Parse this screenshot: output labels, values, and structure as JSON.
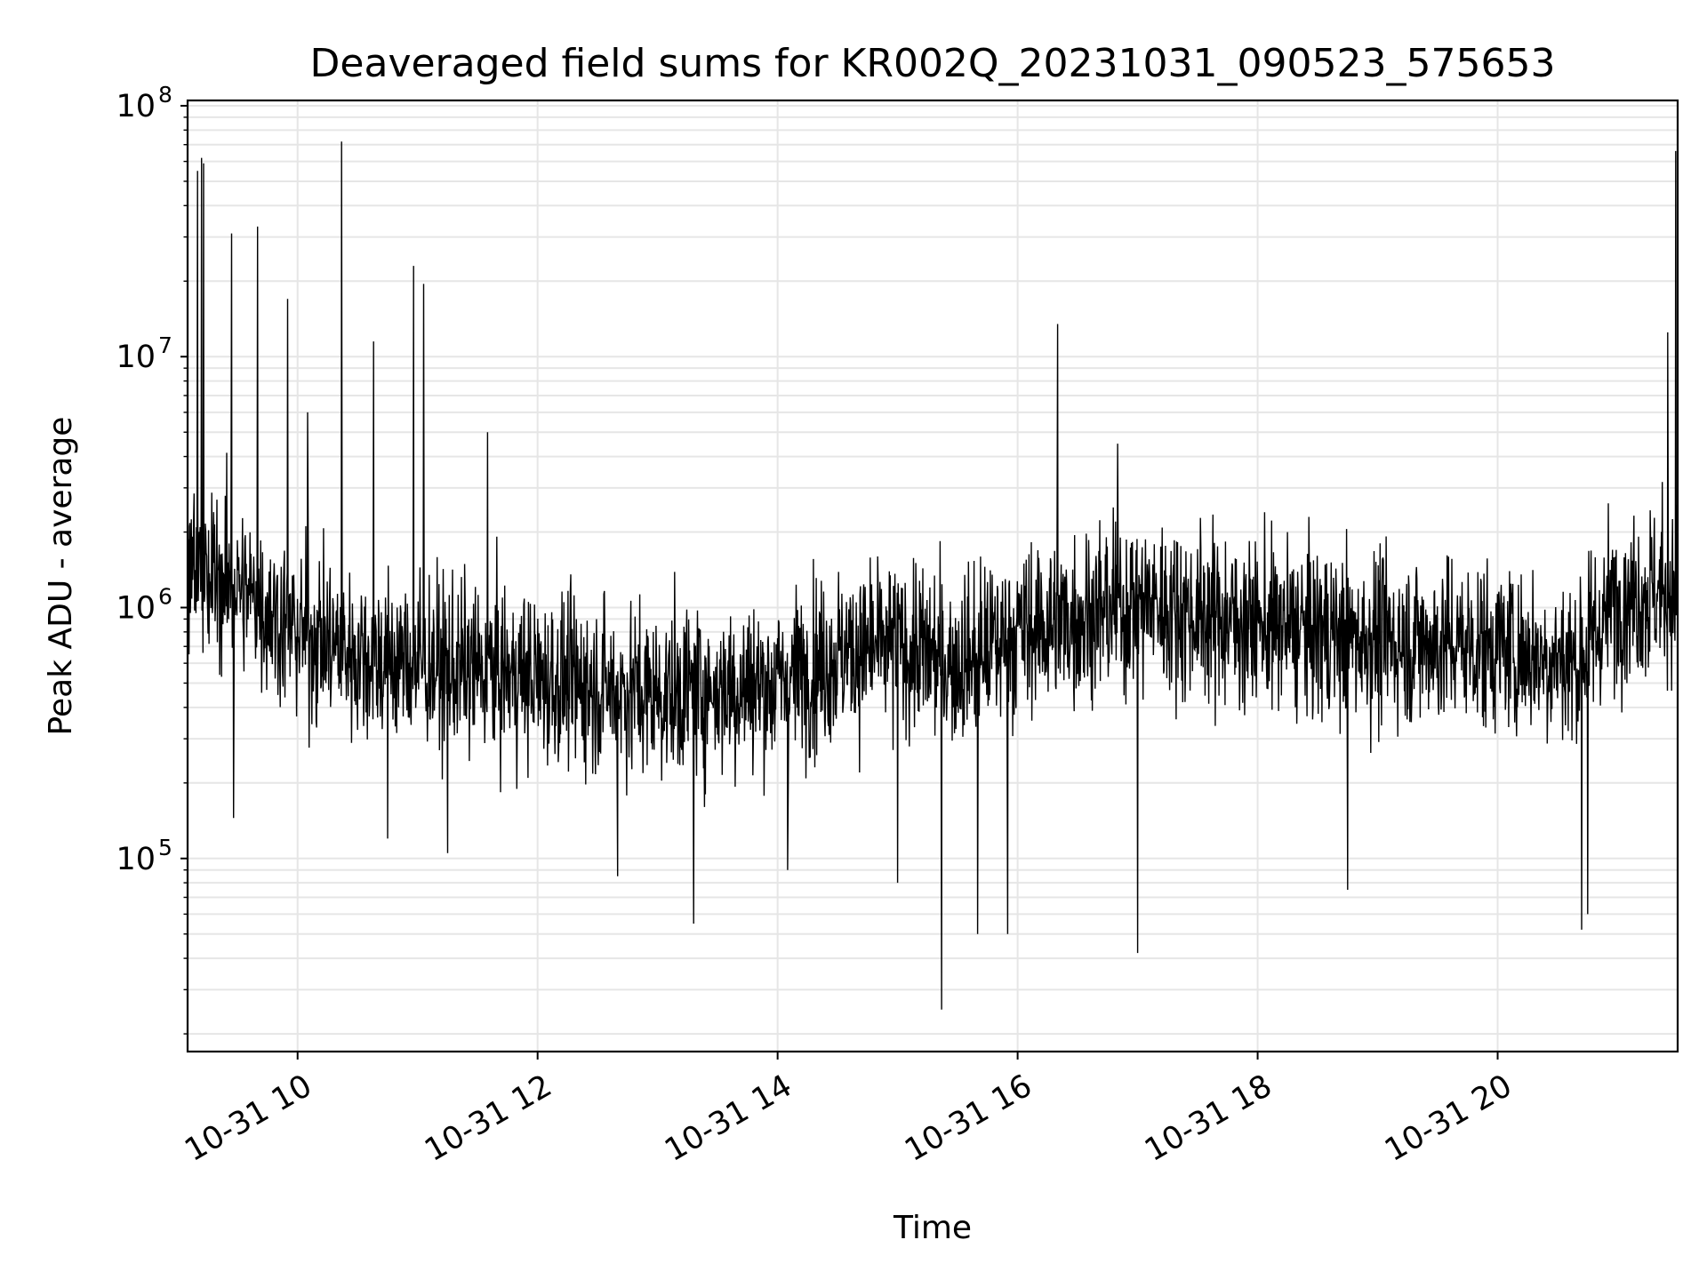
{
  "chart_data": {
    "type": "line",
    "title": "Deaveraged field sums for KR002Q_20231031_090523_575653",
    "xlabel": "Time",
    "ylabel": "Peak ADU - average",
    "yscale": "log",
    "xlim": [
      "2023-10-31T09:05",
      "2023-10-31T21:30"
    ],
    "ylim": [
      17000,
      105000000
    ],
    "grid": true,
    "line_color": "#000000",
    "grid_color": "#e6e6e6",
    "x_ticks": [
      {
        "x": "2023-10-31T10:00",
        "label": "10-31 10"
      },
      {
        "x": "2023-10-31T12:00",
        "label": "10-31 12"
      },
      {
        "x": "2023-10-31T14:00",
        "label": "10-31 14"
      },
      {
        "x": "2023-10-31T16:00",
        "label": "10-31 16"
      },
      {
        "x": "2023-10-31T18:00",
        "label": "10-31 18"
      },
      {
        "x": "2023-10-31T20:00",
        "label": "10-31 20"
      }
    ],
    "y_ticks": [
      {
        "value": 100000,
        "base": "10",
        "exp": "5"
      },
      {
        "value": 1000000,
        "base": "10",
        "exp": "6"
      },
      {
        "value": 10000000,
        "base": "10",
        "exp": "7"
      },
      {
        "value": 100000000,
        "base": "10",
        "exp": "8"
      }
    ],
    "series": [
      {
        "baseline": [
          [
            "2023-10-31T09:05",
            1500000
          ],
          [
            "2023-10-31T09:30",
            1200000
          ],
          [
            "2023-10-31T10:00",
            800000
          ],
          [
            "2023-10-31T10:30",
            650000
          ],
          [
            "2023-10-31T11:00",
            600000
          ],
          [
            "2023-10-31T12:00",
            520000
          ],
          [
            "2023-10-31T13:00",
            450000
          ],
          [
            "2023-10-31T14:00",
            500000
          ],
          [
            "2023-10-31T14:30",
            650000
          ],
          [
            "2023-10-31T15:00",
            700000
          ],
          [
            "2023-10-31T15:30",
            600000
          ],
          [
            "2023-10-31T16:00",
            800000
          ],
          [
            "2023-10-31T17:00",
            1050000
          ],
          [
            "2023-10-31T18:00",
            850000
          ],
          [
            "2023-10-31T19:00",
            750000
          ],
          [
            "2023-10-31T20:00",
            700000
          ],
          [
            "2023-10-31T20:40",
            600000
          ],
          [
            "2023-10-31T21:00",
            1100000
          ],
          [
            "2023-10-31T21:30",
            1200000
          ]
        ],
        "spikes": [
          [
            "2023-10-31T09:10",
            55000000
          ],
          [
            "2023-10-31T09:12",
            62000000
          ],
          [
            "2023-10-31T09:13",
            59000000
          ],
          [
            "2023-10-31T09:27",
            31000000
          ],
          [
            "2023-10-31T09:40",
            33000000
          ],
          [
            "2023-10-31T09:55",
            17000000
          ],
          [
            "2023-10-31T10:05",
            6000000
          ],
          [
            "2023-10-31T10:22",
            72000000
          ],
          [
            "2023-10-31T10:38",
            11500000
          ],
          [
            "2023-10-31T10:58",
            23000000
          ],
          [
            "2023-10-31T11:03",
            19500000
          ],
          [
            "2023-10-31T11:35",
            5000000
          ],
          [
            "2023-10-31T16:20",
            13500000
          ],
          [
            "2023-10-31T16:50",
            4500000
          ],
          [
            "2023-10-31T21:25",
            12500000
          ],
          [
            "2023-10-31T21:29",
            66000000
          ]
        ],
        "dips": [
          [
            "2023-10-31T09:28",
            145000
          ],
          [
            "2023-10-31T10:45",
            120000
          ],
          [
            "2023-10-31T11:15",
            105000
          ],
          [
            "2023-10-31T12:40",
            85000
          ],
          [
            "2023-10-31T13:18",
            55000
          ],
          [
            "2023-10-31T14:05",
            90000
          ],
          [
            "2023-10-31T15:00",
            80000
          ],
          [
            "2023-10-31T15:22",
            25000
          ],
          [
            "2023-10-31T15:40",
            50000
          ],
          [
            "2023-10-31T15:55",
            50000
          ],
          [
            "2023-10-31T17:00",
            42000
          ],
          [
            "2023-10-31T18:45",
            75000
          ],
          [
            "2023-10-31T20:42",
            52000
          ],
          [
            "2023-10-31T20:45",
            60000
          ]
        ]
      }
    ]
  }
}
